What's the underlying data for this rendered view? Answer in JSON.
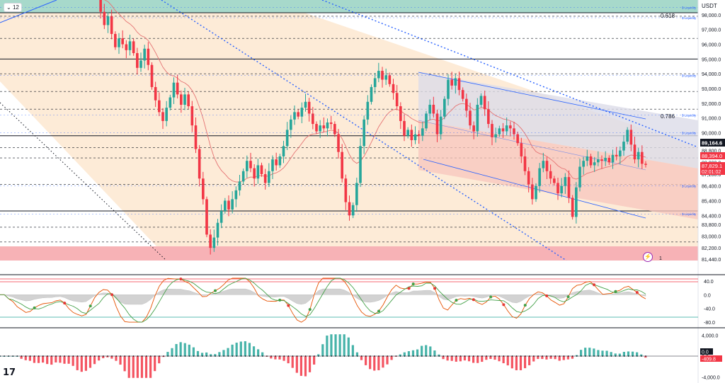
{
  "header": {
    "interval": "12",
    "expand_glyph": "⌄"
  },
  "price_axis": {
    "currency": "USDT",
    "ticks": [
      "98,000.0",
      "97,000.0",
      "96,000.0",
      "95,000.0",
      "94,000.0",
      "93,000.0",
      "92,000.0",
      "91,000.0",
      "90,000.0",
      "88,800.0",
      "88,000.0",
      "87,200.0",
      "86,400.0",
      "85,400.0",
      "84,400.0",
      "83,800.0",
      "83,000.0",
      "82,200.0",
      "81,440.0"
    ],
    "last_price": "89,164.6",
    "tag_upper": "88,394.0",
    "tag_lower": "87,829.1",
    "countdown": "02:01:02"
  },
  "fib": {
    "upper": "0.618",
    "lower": "0.786"
  },
  "liquidity": {
    "label": "Liquidity",
    "marker": "$"
  },
  "annotation": {
    "marker_right": "1"
  },
  "oscillator": {
    "ticks": [
      "40.0",
      "0.0",
      "-40.0",
      "-80.0"
    ]
  },
  "histogram": {
    "ticks": [
      "4,000.0",
      "0.0",
      "-4,000.0"
    ],
    "zero_tag": "0.0",
    "value_tag": "-409.8"
  },
  "colors": {
    "up": "#26a69a",
    "down": "#f23645",
    "band_top": "#a7d9cb",
    "band_bottom": "#f7b2b6",
    "range": "#fdebd7",
    "channel": "#2962ff",
    "last_tag": "#131722",
    "neg_tag": "#f23645"
  },
  "chart_data": {
    "type": "candlestick",
    "title": "",
    "ylim": [
      81440,
      99000
    ],
    "closes": [
      99400,
      98200,
      97300,
      97900,
      96700,
      95800,
      96400,
      96000,
      95600,
      96200,
      95400,
      94400,
      94900,
      95700,
      94600,
      93100,
      92200,
      91400,
      90800,
      91700,
      92400,
      93400,
      92600,
      91900,
      92600,
      91800,
      90500,
      88900,
      86900,
      85500,
      83100,
      82200,
      82900,
      83900,
      84700,
      85400,
      84800,
      85500,
      86100,
      86700,
      87400,
      88100,
      87600,
      86900,
      87800,
      87200,
      86600,
      87400,
      88200,
      87800,
      88400,
      89100,
      90200,
      90900,
      91400,
      91100,
      91700,
      92100,
      91300,
      90600,
      90100,
      90500,
      90300,
      90700,
      90600,
      89900,
      88700,
      86900,
      85300,
      84400,
      85100,
      86600,
      89100,
      90900,
      92100,
      93100,
      93700,
      94200,
      93600,
      93900,
      93300,
      92700,
      91800,
      90800,
      89800,
      90200,
      89500,
      89900,
      89800,
      90300,
      91300,
      91900,
      91300,
      89900,
      91100,
      92300,
      93600,
      93200,
      93700,
      92900,
      92300,
      91500,
      90500,
      90100,
      91900,
      92500,
      91600,
      90600,
      89700,
      89900,
      90300,
      90100,
      90500,
      90300,
      89900,
      89300,
      88400,
      87400,
      86500,
      85500,
      86400,
      87600,
      88100,
      87400,
      86900,
      86600,
      85900,
      86400,
      87000,
      85600,
      84300,
      86300,
      87700,
      88100,
      88400,
      87800,
      88000,
      88200,
      88100,
      88300,
      88000,
      88500,
      88400,
      88800,
      89400,
      90200,
      89200,
      88200,
      88700,
      87900,
      87829
    ],
    "oscillator": {
      "ylim": [
        -90,
        50
      ],
      "levels": [
        50,
        47,
        -50
      ]
    },
    "histogram": {
      "ylim": [
        -4500,
        4500
      ],
      "last": -409.8
    }
  }
}
